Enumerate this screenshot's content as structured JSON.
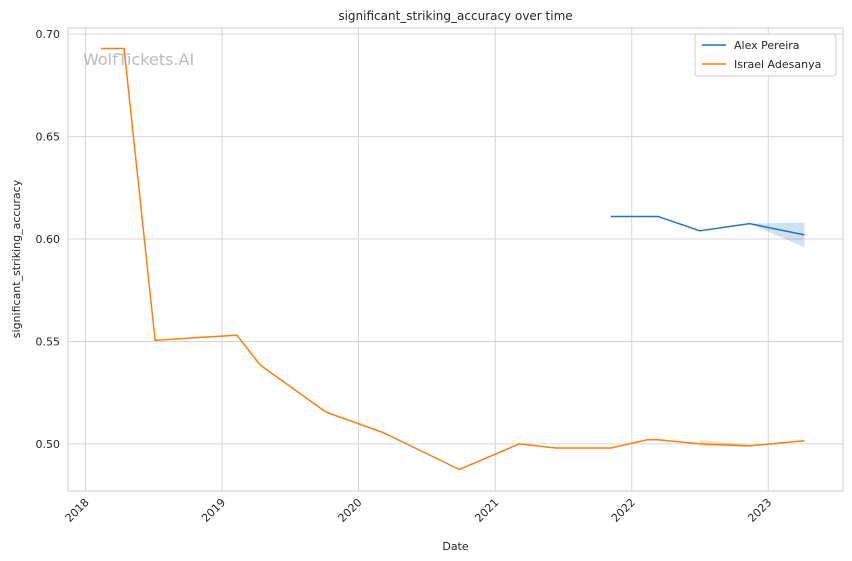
{
  "chart_data": {
    "type": "line",
    "title": "significant_striking_accuracy over time",
    "xlabel": "Date",
    "ylabel": "significant_striking_accuracy",
    "watermark": "WolfTickets.AI",
    "xlim": [
      "2017-11-15",
      "2023-07-20"
    ],
    "ylim": [
      0.477,
      0.703
    ],
    "x_ticks": [
      {
        "date": "2018-01-01",
        "label": "2018"
      },
      {
        "date": "2019-01-01",
        "label": "2019"
      },
      {
        "date": "2020-01-01",
        "label": "2020"
      },
      {
        "date": "2021-01-01",
        "label": "2021"
      },
      {
        "date": "2022-01-01",
        "label": "2022"
      },
      {
        "date": "2023-01-01",
        "label": "2023"
      }
    ],
    "y_ticks": [
      {
        "value": 0.5,
        "label": "0.50"
      },
      {
        "value": 0.55,
        "label": "0.55"
      },
      {
        "value": 0.6,
        "label": "0.60"
      },
      {
        "value": 0.65,
        "label": "0.65"
      },
      {
        "value": 0.7,
        "label": "0.70"
      }
    ],
    "grid": true,
    "legend_position": "top-right",
    "series": [
      {
        "name": "Alex Pereira",
        "color": "#1f77b4",
        "points": [
          {
            "x": "2021-11-06",
            "y": 0.611
          },
          {
            "x": "2022-03-12",
            "y": 0.611
          },
          {
            "x": "2022-07-02",
            "y": 0.604
          },
          {
            "x": "2022-11-12",
            "y": 0.6075
          },
          {
            "x": "2023-04-08",
            "y": 0.602
          }
        ],
        "band": [
          {
            "x": "2022-11-12",
            "lo": 0.6075,
            "hi": 0.6075
          },
          {
            "x": "2023-04-08",
            "lo": 0.596,
            "hi": 0.608
          }
        ]
      },
      {
        "name": "Israel Adesanya",
        "color": "#ff7f0e",
        "points": [
          {
            "x": "2018-02-11",
            "y": 0.693
          },
          {
            "x": "2018-04-14",
            "y": 0.693
          },
          {
            "x": "2018-07-06",
            "y": 0.5505
          },
          {
            "x": "2018-11-03",
            "y": 0.552
          },
          {
            "x": "2019-02-10",
            "y": 0.553
          },
          {
            "x": "2019-04-13",
            "y": 0.5385
          },
          {
            "x": "2019-10-06",
            "y": 0.5155
          },
          {
            "x": "2020-03-07",
            "y": 0.5055
          },
          {
            "x": "2020-09-27",
            "y": 0.4875
          },
          {
            "x": "2021-03-06",
            "y": 0.5
          },
          {
            "x": "2021-06-12",
            "y": 0.498
          },
          {
            "x": "2021-11-06",
            "y": 0.498
          },
          {
            "x": "2022-02-12",
            "y": 0.502
          },
          {
            "x": "2022-03-12",
            "y": 0.502
          },
          {
            "x": "2022-07-02",
            "y": 0.5
          },
          {
            "x": "2022-11-12",
            "y": 0.499
          },
          {
            "x": "2023-04-08",
            "y": 0.5015
          }
        ],
        "band": [
          {
            "x": "2022-07-02",
            "lo": 0.499,
            "hi": 0.502
          },
          {
            "x": "2022-11-12",
            "lo": 0.4985,
            "hi": 0.4995
          }
        ]
      }
    ]
  }
}
